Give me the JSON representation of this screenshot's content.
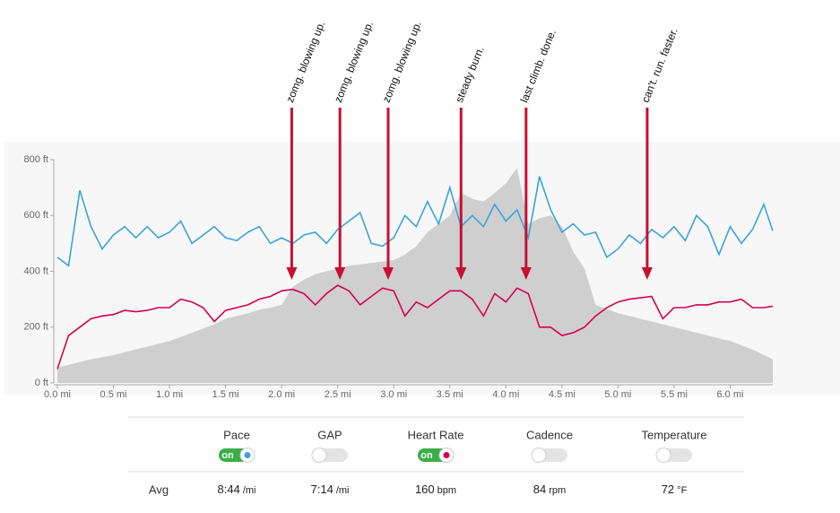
{
  "chart_data": {
    "type": "line",
    "x": [
      0,
      0.1,
      0.2,
      0.3,
      0.4,
      0.5,
      0.6,
      0.7,
      0.8,
      0.9,
      1.0,
      1.1,
      1.2,
      1.3,
      1.4,
      1.5,
      1.6,
      1.7,
      1.8,
      1.9,
      2.0,
      2.1,
      2.2,
      2.3,
      2.4,
      2.5,
      2.6,
      2.7,
      2.8,
      2.9,
      3.0,
      3.1,
      3.2,
      3.3,
      3.4,
      3.5,
      3.6,
      3.7,
      3.8,
      3.9,
      4.0,
      4.1,
      4.2,
      4.3,
      4.4,
      4.5,
      4.6,
      4.7,
      4.8,
      4.9,
      5.0,
      5.1,
      5.2,
      5.3,
      5.4,
      5.5,
      5.6,
      5.7,
      5.8,
      5.9,
      6.0,
      6.1,
      6.2,
      6.3,
      6.38
    ],
    "series": [
      {
        "type": "area",
        "color": "#cfcfcf",
        "values": [
          55,
          65,
          75,
          85,
          92,
          100,
          110,
          120,
          130,
          140,
          150,
          165,
          180,
          195,
          210,
          230,
          240,
          250,
          262,
          270,
          280,
          345,
          370,
          390,
          400,
          410,
          420,
          425,
          430,
          435,
          440,
          460,
          490,
          540,
          570,
          600,
          680,
          660,
          650,
          680,
          715,
          770,
          570,
          590,
          600,
          560,
          470,
          410,
          280,
          265,
          250,
          240,
          230,
          220,
          210,
          200,
          190,
          180,
          170,
          160,
          150,
          135,
          120,
          100,
          85
        ]
      },
      {
        "type": "line",
        "color": "#3aa4d8",
        "values": [
          450,
          420,
          690,
          560,
          480,
          530,
          560,
          520,
          560,
          520,
          540,
          580,
          500,
          530,
          560,
          520,
          510,
          540,
          560,
          500,
          520,
          500,
          530,
          540,
          500,
          550,
          580,
          610,
          500,
          490,
          520,
          600,
          560,
          650,
          570,
          700,
          560,
          600,
          560,
          640,
          580,
          620,
          520,
          740,
          620,
          540,
          570,
          530,
          540,
          450,
          480,
          530,
          500,
          550,
          520,
          560,
          510,
          600,
          560,
          460,
          560,
          500,
          550,
          640,
          545
        ]
      },
      {
        "type": "line",
        "color": "#d6004e",
        "values": [
          50,
          170,
          200,
          230,
          240,
          245,
          260,
          255,
          260,
          270,
          270,
          300,
          290,
          270,
          220,
          260,
          270,
          280,
          300,
          310,
          330,
          335,
          320,
          280,
          320,
          350,
          330,
          280,
          310,
          340,
          330,
          240,
          290,
          270,
          300,
          330,
          330,
          300,
          240,
          320,
          290,
          340,
          320,
          200,
          200,
          170,
          180,
          200,
          240,
          270,
          290,
          300,
          305,
          310,
          230,
          270,
          270,
          280,
          280,
          290,
          290,
          300,
          270,
          270,
          275
        ]
      }
    ],
    "xlim": [
      0,
      6.38
    ],
    "ylim": [
      0,
      800
    ],
    "xticks": [
      {
        "value": 0,
        "label": "0.0 mi"
      },
      {
        "value": 0.5,
        "label": "0.5 mi"
      },
      {
        "value": 1,
        "label": "1.0 mi"
      },
      {
        "value": 1.5,
        "label": "1.5 mi"
      },
      {
        "value": 2,
        "label": "2.0 mi"
      },
      {
        "value": 2.5,
        "label": "2.5 mi"
      },
      {
        "value": 3,
        "label": "3.0 mi"
      },
      {
        "value": 3.5,
        "label": "3.5 mi"
      },
      {
        "value": 4,
        "label": "4.0 mi"
      },
      {
        "value": 4.5,
        "label": "4.5 mi"
      },
      {
        "value": 5,
        "label": "5.0 mi"
      },
      {
        "value": 5.5,
        "label": "5.5 mi"
      },
      {
        "value": 6,
        "label": "6.0 mi"
      }
    ],
    "yticks": [
      {
        "value": 0,
        "label": "0 ft"
      },
      {
        "value": 200,
        "label": "200 ft"
      },
      {
        "value": 400,
        "label": "400 ft"
      },
      {
        "value": 600,
        "label": "600 ft"
      },
      {
        "value": 800,
        "label": "800 ft"
      }
    ],
    "annotations": [
      {
        "x": 2.09,
        "text": "zomg. blowing up."
      },
      {
        "x": 2.52,
        "text": "zomg. blowing up."
      },
      {
        "x": 2.95,
        "text": "zomg. blowing up."
      },
      {
        "x": 3.6,
        "text": "steady burn."
      },
      {
        "x": 4.18,
        "text": "last climb. done."
      },
      {
        "x": 5.26,
        "text": "can't. run. faster."
      }
    ],
    "arrow_color": "#c8102e"
  },
  "controls": [
    {
      "label": "Pace",
      "on": true,
      "on_text": "on",
      "color": "#3aa4d8"
    },
    {
      "label": "GAP",
      "on": false
    },
    {
      "label": "Heart Rate",
      "on": true,
      "on_text": "on",
      "color": "#d6004e"
    },
    {
      "label": "Cadence",
      "on": false
    },
    {
      "label": "Temperature",
      "on": false
    }
  ],
  "averages": {
    "label": "Avg",
    "items": [
      {
        "value": "8:44",
        "unit": "/mi"
      },
      {
        "value": "7:14",
        "unit": "/mi"
      },
      {
        "value": "160",
        "unit": "bpm"
      },
      {
        "value": "84",
        "unit": "rpm"
      },
      {
        "value": "72",
        "unit": "°F"
      }
    ]
  }
}
